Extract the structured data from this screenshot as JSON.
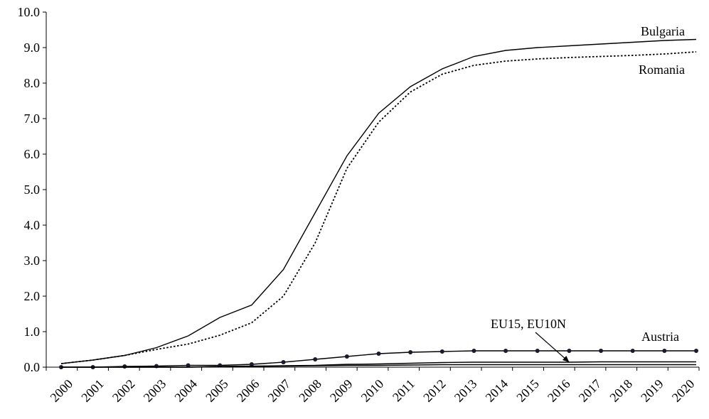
{
  "chart_data": {
    "type": "line",
    "title": "",
    "xlabel": "",
    "ylabel": "",
    "ylim": [
      0,
      10
    ],
    "yticks": [
      "0.0",
      "1.0",
      "2.0",
      "3.0",
      "4.0",
      "5.0",
      "6.0",
      "7.0",
      "8.0",
      "9.0",
      "10.0"
    ],
    "x": [
      "2000",
      "2001",
      "2002",
      "2003",
      "2004",
      "2005",
      "2006",
      "2007",
      "2008",
      "2009",
      "2010",
      "2011",
      "2012",
      "2013",
      "2014",
      "2015",
      "2016",
      "2017",
      "2018",
      "2019",
      "2020"
    ],
    "grid": false,
    "legend": "none",
    "series": [
      {
        "name": "Bulgaria",
        "style": "solid",
        "color": "#000000",
        "values": [
          0.1,
          0.2,
          0.33,
          0.55,
          0.88,
          1.4,
          1.75,
          2.75,
          4.35,
          5.95,
          7.15,
          7.9,
          8.4,
          8.75,
          8.92,
          9.0,
          9.05,
          9.1,
          9.15,
          9.2,
          9.23
        ]
      },
      {
        "name": "Romania",
        "style": "dotted",
        "color": "#000000",
        "values": [
          0.1,
          0.2,
          0.33,
          0.5,
          0.65,
          0.9,
          1.25,
          2.0,
          3.5,
          5.6,
          6.9,
          7.75,
          8.25,
          8.5,
          8.62,
          8.68,
          8.72,
          8.75,
          8.78,
          8.82,
          8.88
        ]
      },
      {
        "name": "Austria",
        "style": "solid-markers",
        "color": "#000000",
        "values": [
          0.0,
          0.0,
          0.02,
          0.03,
          0.05,
          0.05,
          0.08,
          0.14,
          0.22,
          0.3,
          0.38,
          0.42,
          0.44,
          0.46,
          0.46,
          0.46,
          0.46,
          0.46,
          0.46,
          0.46,
          0.46
        ]
      },
      {
        "name": "EU15, EU10N",
        "style": "solid",
        "color": "#000000",
        "values": [
          0.0,
          0.0,
          0.0,
          0.0,
          0.0,
          0.02,
          0.03,
          0.04,
          0.05,
          0.08,
          0.09,
          0.11,
          0.13,
          0.14,
          0.14,
          0.14,
          0.14,
          0.15,
          0.15,
          0.15,
          0.15
        ]
      },
      {
        "name": "",
        "style": "solid",
        "color": "#000000",
        "values": [
          0.0,
          0.0,
          0.0,
          0.0,
          0.0,
          0.01,
          0.02,
          0.03,
          0.04,
          0.05,
          0.05,
          0.06,
          0.07,
          0.07,
          0.07,
          0.07,
          0.07,
          0.07,
          0.07,
          0.07,
          0.07
        ]
      }
    ],
    "annotations": [
      {
        "text": "Bulgaria"
      },
      {
        "text": "Romania"
      },
      {
        "text": "Austria"
      },
      {
        "text": "EU15, EU10N",
        "arrow_to": {
          "x": "2016",
          "y": 0.1
        }
      }
    ]
  }
}
